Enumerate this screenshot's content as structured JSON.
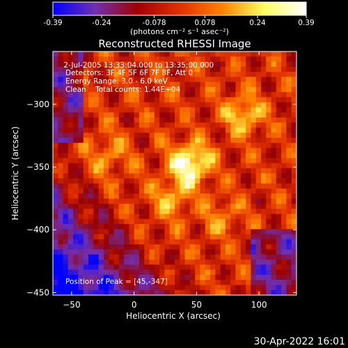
{
  "chart_data": {
    "type": "heatmap",
    "title": "Reconstructed RHESSI Image",
    "xlabel": "Heliocentric X (arcsec)",
    "ylabel": "Heliocentric Y (arcsec)",
    "xlim": [
      -65,
      130
    ],
    "ylim": [
      -452,
      -258
    ],
    "x_ticks": [
      -50,
      0,
      50,
      100
    ],
    "y_ticks": [
      -300,
      -350,
      -400,
      -450
    ],
    "colorbar": {
      "range": [
        -0.39,
        0.39
      ],
      "ticks": [
        "-0.39",
        "-0.24",
        "-0.078",
        "0.078",
        "0.24",
        "0.39"
      ],
      "label": "(photons cm⁻² s⁻¹ asec⁻²)",
      "stops": [
        "#0000ff",
        "#7030b0",
        "#a00000",
        "#e03000",
        "#ff8000",
        "#ffff60",
        "#ffffff"
      ]
    },
    "annotations": [
      " 2-Jul-2005 13:33:04.000 to 13:35:00.000",
      "Detectors: 3F 4F 5F 6F 7F 8F, Att 0",
      "Energy Range: 3.0 - 6.0 keV",
      "Clean    Total counts: 1.44E+04",
      "Position of Peak = [45,-347]"
    ],
    "peak": {
      "x": 45,
      "y": -347,
      "value": 0.39
    },
    "sources": [
      {
        "x": 45,
        "y": -347,
        "amp": 0.39
      },
      {
        "x": 88,
        "y": -308,
        "amp": 0.25
      },
      {
        "x": 30,
        "y": -375,
        "amp": 0.2
      },
      {
        "x": -20,
        "y": -340,
        "amp": 0.16
      },
      {
        "x": 70,
        "y": -390,
        "amp": 0.13
      }
    ],
    "timestamp": "30-Apr-2022 16:01"
  }
}
